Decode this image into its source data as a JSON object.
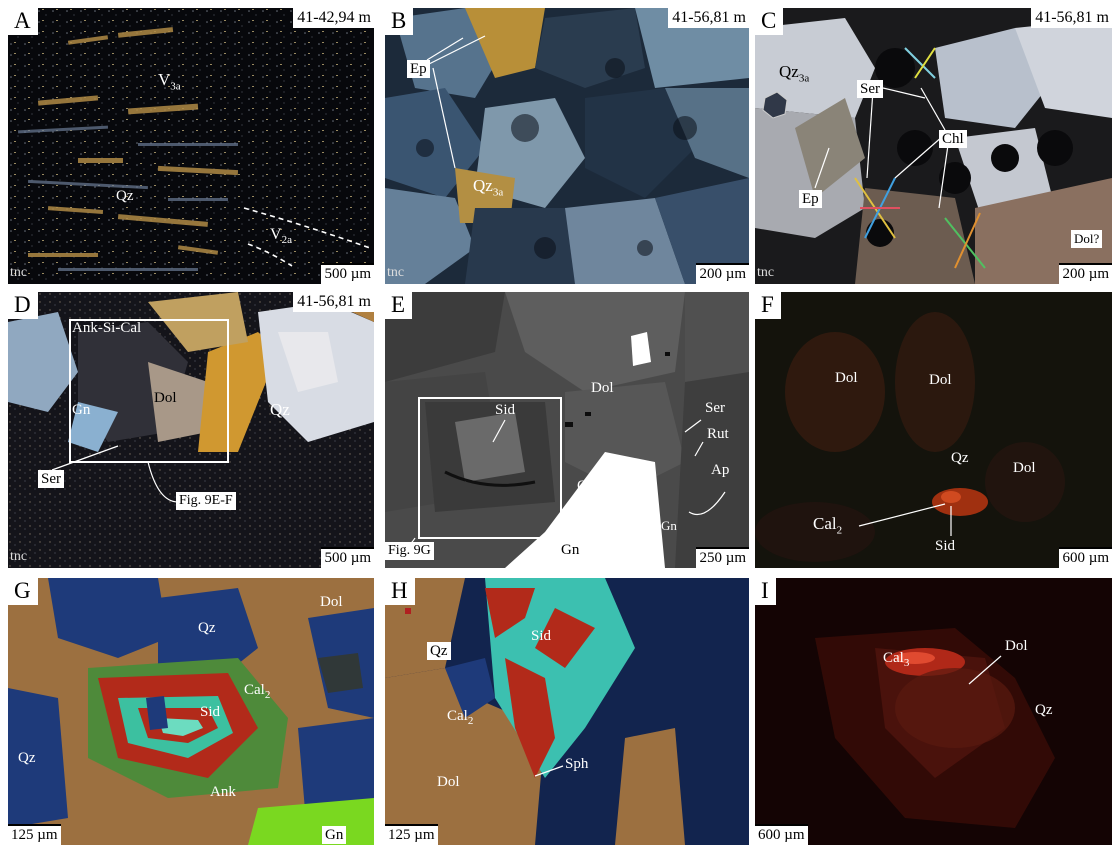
{
  "panels": {
    "A": {
      "letter": "A",
      "depth": "41-42,94 m",
      "tnc": "tnc",
      "scale": "500 µm",
      "labels": {
        "v3a": "V",
        "v3a_sub": "3a",
        "qz": "Qz",
        "v2a": "V",
        "v2a_sub": "2a"
      }
    },
    "B": {
      "letter": "B",
      "depth": "41-56,81 m",
      "tnc": "tnc",
      "scale": "200 µm",
      "labels": {
        "ep": "Ep",
        "qz": "Qz",
        "qz_sub": "3a"
      }
    },
    "C": {
      "letter": "C",
      "depth": "41-56,81 m",
      "tnc": "tnc",
      "scale": "200 µm",
      "labels": {
        "qz": "Qz",
        "qz_sub": "3a",
        "ser": "Ser",
        "chl": "Chl",
        "ep": "Ep",
        "dol": "Dol?"
      }
    },
    "D": {
      "letter": "D",
      "depth": "41-56,81 m",
      "tnc": "tnc",
      "scale": "500 µm",
      "labels": {
        "box": "Ank-Si-Cal",
        "gn": "Gn",
        "dol": "Dol",
        "qz": "Qz",
        "ser": "Ser",
        "fig": "Fig. 9E-F"
      }
    },
    "E": {
      "letter": "E",
      "scale": "250 µm",
      "labels": {
        "dol": "Dol",
        "sid": "Sid",
        "ser": "Ser",
        "rut": "Rut",
        "ap": "Ap",
        "qz": "Qz",
        "gn_small": "Gn",
        "gn": "Gn",
        "fig": "Fig. 9G"
      }
    },
    "F": {
      "letter": "F",
      "scale": "600 µm",
      "labels": {
        "dol1": "Dol",
        "dol2": "Dol",
        "qz": "Qz",
        "dol3": "Dol",
        "cal": "Cal",
        "cal_sub": "2",
        "sid": "Sid"
      }
    },
    "G": {
      "letter": "G",
      "scale": "125 µm",
      "labels": {
        "dol": "Dol",
        "qz1": "Qz",
        "cal": "Cal",
        "cal_sub": "2",
        "sid": "Sid",
        "qz2": "Qz",
        "ank": "Ank",
        "gn": "Gn"
      }
    },
    "H": {
      "letter": "H",
      "scale": "125 µm",
      "labels": {
        "qz": "Qz",
        "sid": "Sid",
        "cal": "Cal",
        "cal_sub": "2",
        "sph": "Sph",
        "dol": "Dol"
      }
    },
    "I": {
      "letter": "I",
      "scale": "600 µm",
      "labels": {
        "cal": "Cal",
        "cal_sub": "3",
        "dol": "Dol",
        "qz": "Qz"
      }
    }
  },
  "colors": {
    "background": "#ffffff",
    "label": "#ffffff",
    "frame": "#ffffff"
  }
}
